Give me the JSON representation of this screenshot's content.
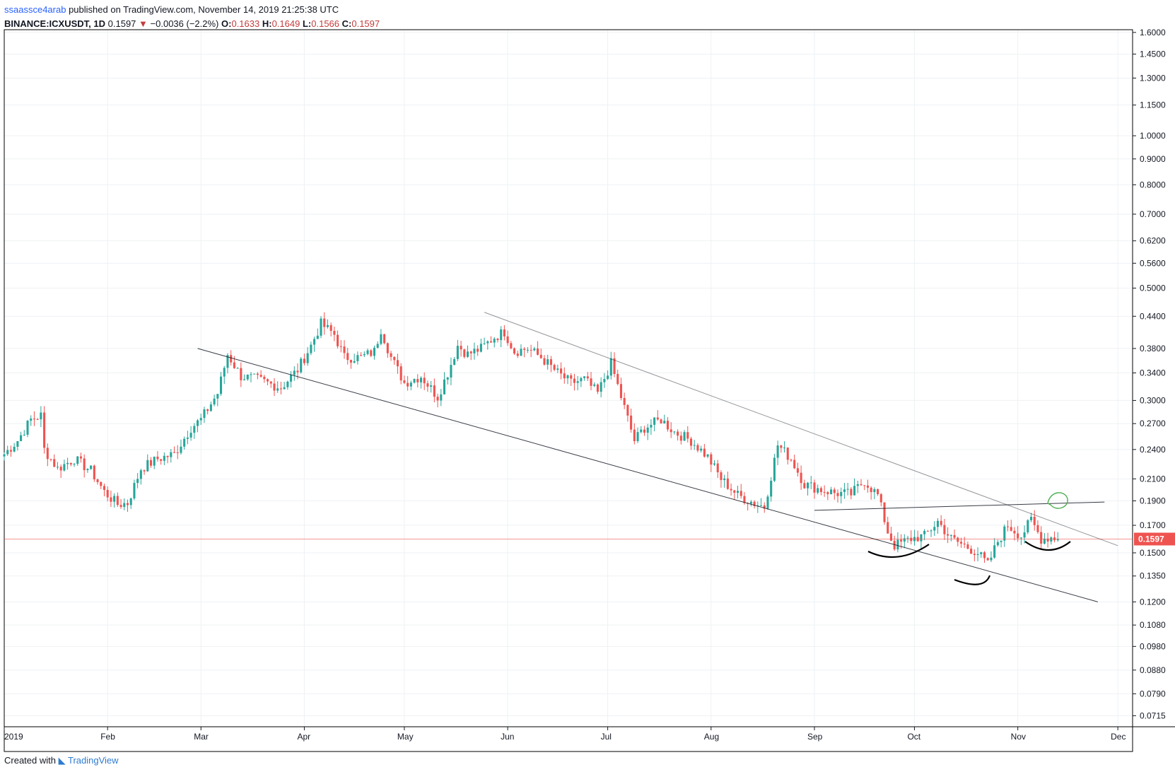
{
  "header": {
    "author": "ssaassce4arab",
    "published_text": "published on TradingView.com, November 14, 2019 21:25:38 UTC",
    "symbol": "BINANCE:ICXUSDT, 1D",
    "last": "0.1597",
    "change_arrow": "▼",
    "change": "−0.0036 (−2.2%)",
    "open_label": "O:",
    "open": "0.1633",
    "high_label": "H:",
    "high": "0.1649",
    "low_label": "L:",
    "low": "0.1566",
    "close_label": "C:",
    "close": "0.1597"
  },
  "footer": {
    "created_with": "Created with",
    "brand": "TradingView"
  },
  "colors": {
    "up": "#26a69a",
    "down": "#ef5350",
    "price_line": "#ef5350",
    "grid": "#eef1f4",
    "trendline": "#131722",
    "annotation": "#000000",
    "target": "#4caf50"
  },
  "chart_data": {
    "type": "candlestick",
    "symbol": "BINANCE:ICXUSDT",
    "interval": "1D",
    "scale": "log",
    "ylim": [
      0.068,
      1.62
    ],
    "xlim": [
      "2019-01-01",
      "2019-12-05"
    ],
    "y_ticks": [
      "1.6000",
      "1.4500",
      "1.3000",
      "1.1500",
      "1.0000",
      "0.9000",
      "0.8000",
      "0.7000",
      "0.6200",
      "0.5600",
      "0.5000",
      "0.4400",
      "0.3800",
      "0.3400",
      "0.3000",
      "0.2700",
      "0.2400",
      "0.2100",
      "0.1900",
      "0.1700",
      "0.1500",
      "0.1350",
      "0.1200",
      "0.1080",
      "0.0980",
      "0.0880",
      "0.0790",
      "0.0715"
    ],
    "x_ticks": [
      {
        "label": "2019",
        "date": "2019-01-01"
      },
      {
        "label": "Feb",
        "date": "2019-02-01"
      },
      {
        "label": "Mar",
        "date": "2019-03-01"
      },
      {
        "label": "Apr",
        "date": "2019-04-01"
      },
      {
        "label": "May",
        "date": "2019-05-01"
      },
      {
        "label": "Jun",
        "date": "2019-06-01"
      },
      {
        "label": "Jul",
        "date": "2019-07-01"
      },
      {
        "label": "Aug",
        "date": "2019-08-01"
      },
      {
        "label": "Sep",
        "date": "2019-09-01"
      },
      {
        "label": "Oct",
        "date": "2019-10-01"
      },
      {
        "label": "Nov",
        "date": "2019-11-01"
      },
      {
        "label": "Dec",
        "date": "2019-12-01"
      }
    ],
    "current_price": "0.1597",
    "grid": true,
    "anchor_closes": [
      [
        "2019-01-01",
        0.235
      ],
      [
        "2019-01-05",
        0.25
      ],
      [
        "2019-01-09",
        0.275
      ],
      [
        "2019-01-12",
        0.28
      ],
      [
        "2019-01-13",
        0.24
      ],
      [
        "2019-01-17",
        0.22
      ],
      [
        "2019-01-22",
        0.23
      ],
      [
        "2019-01-27",
        0.218
      ],
      [
        "2019-01-31",
        0.198
      ],
      [
        "2019-02-04",
        0.187
      ],
      [
        "2019-02-07",
        0.188
      ],
      [
        "2019-02-11",
        0.22
      ],
      [
        "2019-02-16",
        0.23
      ],
      [
        "2019-02-21",
        0.235
      ],
      [
        "2019-02-26",
        0.265
      ],
      [
        "2019-03-01",
        0.275
      ],
      [
        "2019-03-06",
        0.31
      ],
      [
        "2019-03-09",
        0.37
      ],
      [
        "2019-03-13",
        0.335
      ],
      [
        "2019-03-18",
        0.33
      ],
      [
        "2019-03-25",
        0.318
      ],
      [
        "2019-03-30",
        0.345
      ],
      [
        "2019-04-03",
        0.385
      ],
      [
        "2019-04-06",
        0.425
      ],
      [
        "2019-04-10",
        0.405
      ],
      [
        "2019-04-13",
        0.365
      ],
      [
        "2019-04-18",
        0.365
      ],
      [
        "2019-04-22",
        0.375
      ],
      [
        "2019-04-24",
        0.415
      ],
      [
        "2019-04-27",
        0.365
      ],
      [
        "2019-05-01",
        0.325
      ],
      [
        "2019-05-06",
        0.335
      ],
      [
        "2019-05-11",
        0.305
      ],
      [
        "2019-05-14",
        0.34
      ],
      [
        "2019-05-17",
        0.385
      ],
      [
        "2019-05-20",
        0.37
      ],
      [
        "2019-05-24",
        0.38
      ],
      [
        "2019-05-28",
        0.4
      ],
      [
        "2019-05-31",
        0.41
      ],
      [
        "2019-06-03",
        0.375
      ],
      [
        "2019-06-07",
        0.38
      ],
      [
        "2019-06-11",
        0.365
      ],
      [
        "2019-06-16",
        0.34
      ],
      [
        "2019-06-20",
        0.325
      ],
      [
        "2019-06-24",
        0.33
      ],
      [
        "2019-06-28",
        0.31
      ],
      [
        "2019-07-02",
        0.355
      ],
      [
        "2019-07-05",
        0.305
      ],
      [
        "2019-07-09",
        0.25
      ],
      [
        "2019-07-12",
        0.265
      ],
      [
        "2019-07-17",
        0.275
      ],
      [
        "2019-07-21",
        0.26
      ],
      [
        "2019-07-26",
        0.25
      ],
      [
        "2019-07-31",
        0.232
      ],
      [
        "2019-08-04",
        0.21
      ],
      [
        "2019-08-09",
        0.195
      ],
      [
        "2019-08-14",
        0.188
      ],
      [
        "2019-08-17",
        0.185
      ],
      [
        "2019-08-21",
        0.245
      ],
      [
        "2019-08-25",
        0.23
      ],
      [
        "2019-08-29",
        0.205
      ],
      [
        "2019-09-03",
        0.2
      ],
      [
        "2019-09-07",
        0.197
      ],
      [
        "2019-09-12",
        0.196
      ],
      [
        "2019-09-16",
        0.208
      ],
      [
        "2019-09-20",
        0.195
      ],
      [
        "2019-09-23",
        0.165
      ],
      [
        "2019-09-25",
        0.155
      ],
      [
        "2019-09-30",
        0.16
      ],
      [
        "2019-10-04",
        0.162
      ],
      [
        "2019-10-08",
        0.173
      ],
      [
        "2019-10-12",
        0.16
      ],
      [
        "2019-10-16",
        0.155
      ],
      [
        "2019-10-20",
        0.15
      ],
      [
        "2019-10-23",
        0.142
      ],
      [
        "2019-10-26",
        0.158
      ],
      [
        "2019-10-29",
        0.17
      ],
      [
        "2019-11-02",
        0.162
      ],
      [
        "2019-11-05",
        0.174
      ],
      [
        "2019-11-08",
        0.16
      ],
      [
        "2019-11-11",
        0.161
      ],
      [
        "2019-11-13",
        0.1597
      ]
    ],
    "drawings": [
      {
        "type": "trendline",
        "name": "lower-channel-line",
        "from": [
          "2019-02-28",
          0.38
        ],
        "to": [
          "2019-11-25",
          0.12
        ]
      },
      {
        "type": "trendline",
        "name": "upper-channel-line",
        "from": [
          "2019-05-25",
          0.448
        ],
        "to": [
          "2019-12-01",
          0.155
        ]
      },
      {
        "type": "trendline",
        "name": "neckline",
        "from": [
          "2019-09-01",
          0.182
        ],
        "to": [
          "2019-11-27",
          0.189
        ]
      }
    ]
  }
}
